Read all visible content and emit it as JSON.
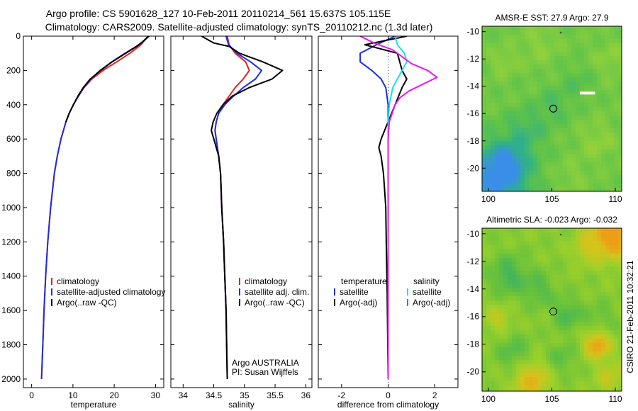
{
  "header": {
    "line1": "Argo profile: CS 5901628_127 10-Feb-2011 20110214_561 15.637S 105.115E",
    "line2": "Climatology: CARS2009. Satellite-adjusted climatology: synTS_20110212.nc (1.3d later)"
  },
  "credit": "CSIRO 21-Feb-2011 10:32:21",
  "colors": {
    "clim": "#e8201c",
    "sat": "#1d2ee8",
    "argo": "#000000",
    "sat_diff": "#19e0e8",
    "argo_adj": "#ee16ee"
  },
  "chart_data": [
    {
      "type": "line",
      "xlabel": "temperature",
      "ylim": [
        2050,
        0
      ],
      "xlim": [
        -2,
        32
      ],
      "yticks": [
        0,
        200,
        400,
        600,
        800,
        1000,
        1200,
        1400,
        1600,
        1800,
        2000
      ],
      "xticks": [
        0,
        10,
        20,
        30
      ],
      "legend": {
        "title": "",
        "entries": [
          "climatology",
          "satellite-adjusted climatology",
          "Argo(..raw -QC)"
        ]
      },
      "series": [
        {
          "name": "climatology",
          "color": "#e8201c",
          "depth": [
            0,
            50,
            100,
            150,
            200,
            250,
            300,
            350,
            400,
            450,
            500,
            600,
            700,
            800,
            1000,
            1200,
            1400,
            1600,
            1800,
            2000
          ],
          "values": [
            28.2,
            26.5,
            23.8,
            20.6,
            17.3,
            14.6,
            12.7,
            11.3,
            10.1,
            9.1,
            8.3,
            7.1,
            6.2,
            5.5,
            4.6,
            3.9,
            3.4,
            3.0,
            2.7,
            2.4
          ]
        },
        {
          "name": "satellite-adjusted climatology",
          "color": "#1d2ee8",
          "depth": [
            0,
            50,
            100,
            150,
            200,
            250,
            300,
            350,
            400,
            450,
            500,
            600,
            700,
            800,
            1000,
            1200,
            1400,
            1600,
            1800,
            2000
          ],
          "values": [
            28.5,
            26.0,
            22.6,
            19.4,
            16.6,
            14.3,
            12.6,
            11.3,
            10.1,
            9.1,
            8.3,
            7.1,
            6.2,
            5.5,
            4.6,
            3.9,
            3.4,
            3.0,
            2.7,
            2.4
          ]
        },
        {
          "name": "Argo(..raw -QC)",
          "color": "#000000",
          "depth": [
            0,
            30,
            60,
            100,
            150,
            200,
            250,
            300,
            350,
            400,
            450,
            500
          ],
          "values": [
            28.3,
            27.0,
            25.4,
            22.8,
            19.5,
            16.7,
            14.2,
            12.5,
            11.2,
            10.1,
            9.1,
            8.3
          ]
        }
      ]
    },
    {
      "type": "line",
      "xlabel": "salinity",
      "ylim": [
        2050,
        0
      ],
      "xlim": [
        33.8,
        36.1
      ],
      "xticks": [
        34,
        34.5,
        35,
        35.5,
        36
      ],
      "legend": {
        "title": "",
        "entries": [
          "climatology",
          "satellite adj. clim.",
          "Argo(..raw -QC)"
        ]
      },
      "annotation": [
        "Argo AUSTRALIA",
        "PI: Susan Wijffels"
      ],
      "series": [
        {
          "name": "climatology",
          "color": "#e8201c",
          "depth": [
            0,
            50,
            100,
            150,
            200,
            250,
            300,
            350,
            400,
            450,
            500,
            550,
            600,
            700,
            800,
            1000,
            1200,
            1400,
            1600,
            1800,
            2000
          ],
          "values": [
            34.72,
            34.75,
            34.85,
            35.02,
            35.08,
            34.98,
            34.85,
            34.75,
            34.65,
            34.58,
            34.54,
            34.52,
            34.54,
            34.58,
            34.61,
            34.63,
            34.66,
            34.68,
            34.7,
            34.71,
            34.72
          ]
        },
        {
          "name": "satellite adj. clim.",
          "color": "#1d2ee8",
          "depth": [
            0,
            50,
            100,
            150,
            200,
            250,
            300,
            350,
            400,
            450,
            500,
            550,
            600,
            700,
            800,
            1000,
            1200,
            1400,
            1600,
            1800,
            2000
          ],
          "values": [
            34.7,
            34.74,
            34.88,
            35.1,
            35.28,
            35.18,
            34.98,
            34.82,
            34.68,
            34.58,
            34.54,
            34.52,
            34.54,
            34.58,
            34.61,
            34.63,
            34.66,
            34.68,
            34.7,
            34.71,
            34.72
          ]
        },
        {
          "name": "Argo(..raw -QC)",
          "color": "#000000",
          "depth": [
            0,
            40,
            60,
            100,
            150,
            200,
            250,
            300,
            350,
            400,
            450,
            500,
            550,
            600,
            700,
            800,
            1000,
            1200,
            1400,
            1600,
            1800,
            2000
          ],
          "values": [
            34.3,
            34.5,
            34.75,
            34.92,
            35.3,
            35.62,
            35.45,
            35.08,
            34.8,
            34.65,
            34.55,
            34.49,
            34.46,
            34.5,
            34.58,
            34.61,
            34.63,
            34.66,
            34.68,
            34.7,
            34.71,
            34.72
          ]
        }
      ]
    },
    {
      "type": "line",
      "xlabel": "difference from climatology",
      "ylim": [
        2050,
        0
      ],
      "xlim": [
        -3,
        3
      ],
      "xticks": [
        -2,
        0,
        2
      ],
      "legend": {
        "col1_title": "temperature",
        "col2_title": "salinity",
        "col1": [
          "satellite",
          "Argo(-adj)"
        ],
        "col2": [
          "satellite",
          "Argo(-adj)"
        ]
      },
      "series": [
        {
          "name": "temperature satellite",
          "color": "#1d2ee8",
          "depth": [
            0,
            50,
            100,
            150,
            200,
            250,
            300,
            400,
            500,
            600,
            800,
            1000,
            1500,
            2000
          ],
          "values": [
            0.3,
            -0.5,
            -1.2,
            -1.2,
            -0.7,
            -0.3,
            -0.1,
            0.0,
            0.0,
            0.0,
            0.0,
            0.0,
            0.0,
            0.0
          ]
        },
        {
          "name": "temperature Argo(-adj)",
          "color": "#000000",
          "depth": [
            0,
            50,
            100,
            150,
            200,
            250,
            300,
            400,
            500,
            600,
            650,
            700,
            800,
            900,
            1000,
            1200,
            1500,
            2000
          ],
          "values": [
            0.8,
            -1.0,
            0.4,
            0.5,
            0.6,
            0.8,
            0.6,
            0.3,
            0.0,
            -0.3,
            -0.4,
            -0.3,
            -0.2,
            -0.15,
            -0.1,
            -0.08,
            -0.04,
            0.0
          ]
        },
        {
          "name": "salinity satellite",
          "color": "#19e0e8",
          "depth": [
            0,
            50,
            100,
            150,
            200,
            250,
            300,
            400,
            500,
            600,
            800,
            1000,
            1500,
            2000
          ],
          "values": [
            0.3,
            0.4,
            0.7,
            0.8,
            0.6,
            0.4,
            0.2,
            0.05,
            0.0,
            0.0,
            0.0,
            0.0,
            0.0,
            0.0
          ]
        },
        {
          "name": "salinity Argo(-adj)",
          "color": "#ee16ee",
          "depth": [
            0,
            40,
            80,
            120,
            160,
            200,
            240,
            280,
            320,
            360,
            400,
            500,
            600,
            800,
            1000,
            1500,
            2000
          ],
          "values": [
            -1.2,
            -0.6,
            0.2,
            0.6,
            1.0,
            1.7,
            2.1,
            1.5,
            0.9,
            0.5,
            0.3,
            0.05,
            0.0,
            0.0,
            0.0,
            0.0,
            0.0
          ]
        }
      ]
    }
  ],
  "maps": [
    {
      "title": "AMSR-E SST: 27.9 Argo: 27.9",
      "xlim": [
        99.5,
        110.5
      ],
      "ylim": [
        -21.7,
        -9.6
      ],
      "xticks": [
        100,
        105,
        110
      ],
      "yticks": [
        -10,
        -12,
        -14,
        -16,
        -18,
        -20
      ],
      "float_lon": 105.115,
      "float_lat": -15.637,
      "palette": [
        "#3a8ee8",
        "#2fb08a",
        "#5cc24a",
        "#8fd03c",
        "#b8dc38"
      ],
      "base_level": 2.4,
      "features": [
        {
          "lon": 100.6,
          "lat": -20.8,
          "r": 2.6,
          "level": -2.4
        },
        {
          "lon": 101.6,
          "lat": -19.6,
          "r": 1.3,
          "level": -1.2
        },
        {
          "lon": 103.0,
          "lat": -17.2,
          "r": 1.6,
          "level": -0.8
        },
        {
          "lon": 105.2,
          "lat": -15.4,
          "r": 1.4,
          "level": -0.6
        },
        {
          "lon": 107.0,
          "lat": -13.6,
          "r": 1.2,
          "level": -0.5
        },
        {
          "lon": 101.2,
          "lat": -12.2,
          "r": 1.0,
          "level": 0.6
        },
        {
          "lon": 104.0,
          "lat": -11.0,
          "r": 1.5,
          "level": 0.5
        },
        {
          "lon": 108.6,
          "lat": -18.0,
          "r": 1.4,
          "level": 0.6
        },
        {
          "lon": 109.6,
          "lat": -12.0,
          "r": 1.3,
          "level": 0.5
        },
        {
          "lon": 106.6,
          "lat": -20.5,
          "r": 1.2,
          "level": 0.4
        }
      ],
      "missing": {
        "lon": [
          107.2,
          108.4
        ],
        "lat": [
          -14.6,
          -14.4
        ]
      }
    },
    {
      "title": "Altimetric SLA: -0.023 Argo: -0.032",
      "xlim": [
        99.5,
        110.5
      ],
      "ylim": [
        -21.4,
        -9.6
      ],
      "xticks": [
        100,
        105,
        110
      ],
      "yticks": [
        -10,
        -12,
        -14,
        -16,
        -18,
        -20
      ],
      "float_lon": 105.115,
      "float_lat": -15.637,
      "palette": [
        "#22a08a",
        "#3cb262",
        "#68c23c",
        "#9dd02a",
        "#d4c41c",
        "#ee9e14"
      ],
      "base_level": 2.6,
      "features": [
        {
          "lon": 101.6,
          "lat": -13.0,
          "r": 1.4,
          "level": -1.4
        },
        {
          "lon": 104.0,
          "lat": -14.0,
          "r": 1.2,
          "level": -1.0
        },
        {
          "lon": 106.2,
          "lat": -15.8,
          "r": 1.1,
          "level": -1.2
        },
        {
          "lon": 102.0,
          "lat": -18.6,
          "r": 1.3,
          "level": -1.0
        },
        {
          "lon": 105.8,
          "lat": -19.0,
          "r": 1.1,
          "level": -0.8
        },
        {
          "lon": 108.8,
          "lat": -16.2,
          "r": 1.3,
          "level": -0.6
        },
        {
          "lon": 109.8,
          "lat": -10.0,
          "r": 1.8,
          "level": 2.8
        },
        {
          "lon": 108.6,
          "lat": -18.0,
          "r": 1.0,
          "level": 2.4
        },
        {
          "lon": 103.4,
          "lat": -20.6,
          "r": 1.4,
          "level": 1.8
        },
        {
          "lon": 100.8,
          "lat": -16.2,
          "r": 1.0,
          "level": 1.0
        },
        {
          "lon": 107.6,
          "lat": -11.2,
          "r": 1.0,
          "level": 0.8
        },
        {
          "lon": 109.6,
          "lat": -20.4,
          "r": 1.2,
          "level": 1.0
        }
      ]
    }
  ]
}
